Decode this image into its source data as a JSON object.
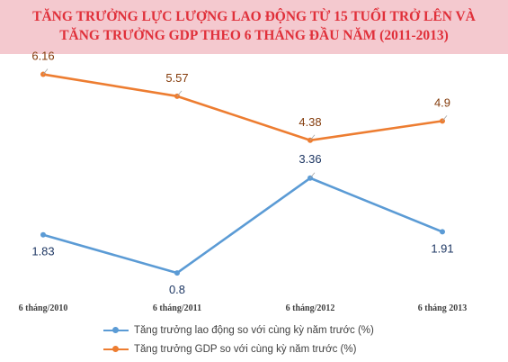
{
  "chart_data": {
    "type": "line",
    "title_lines": [
      "TĂNG TRƯỞNG LỰC LƯỢNG LAO ĐỘNG TỪ 15 TUỔI TRỞ LÊN VÀ",
      "TĂNG TRƯỞNG GDP THEO 6 THÁNG ĐẦU NĂM (2011-2013)"
    ],
    "categories": [
      "6 tháng/2010",
      "6 tháng/2011",
      "6 tháng/2012",
      "6 tháng 2013"
    ],
    "series": [
      {
        "name": "Tăng trưởng lao động so với cùng kỳ năm trước (%)",
        "values": [
          1.83,
          0.8,
          3.36,
          1.91
        ],
        "labels": [
          "1.83",
          "0.8",
          "3.36",
          "1.91"
        ],
        "color": "#5b9bd5"
      },
      {
        "name": "Tăng trưởng GDP so với cùng kỳ năm trước (%)",
        "values": [
          6.16,
          5.57,
          4.38,
          4.9
        ],
        "labels": [
          "6.16",
          "5.57",
          "4.38",
          "4.9"
        ],
        "color": "#ed7d31"
      }
    ],
    "ylim": [
      0,
      7
    ],
    "grid": false,
    "legend_position": "bottom",
    "label_colors": {
      "lao_dong": "#1f3864",
      "gdp": "#843c0c"
    }
  }
}
